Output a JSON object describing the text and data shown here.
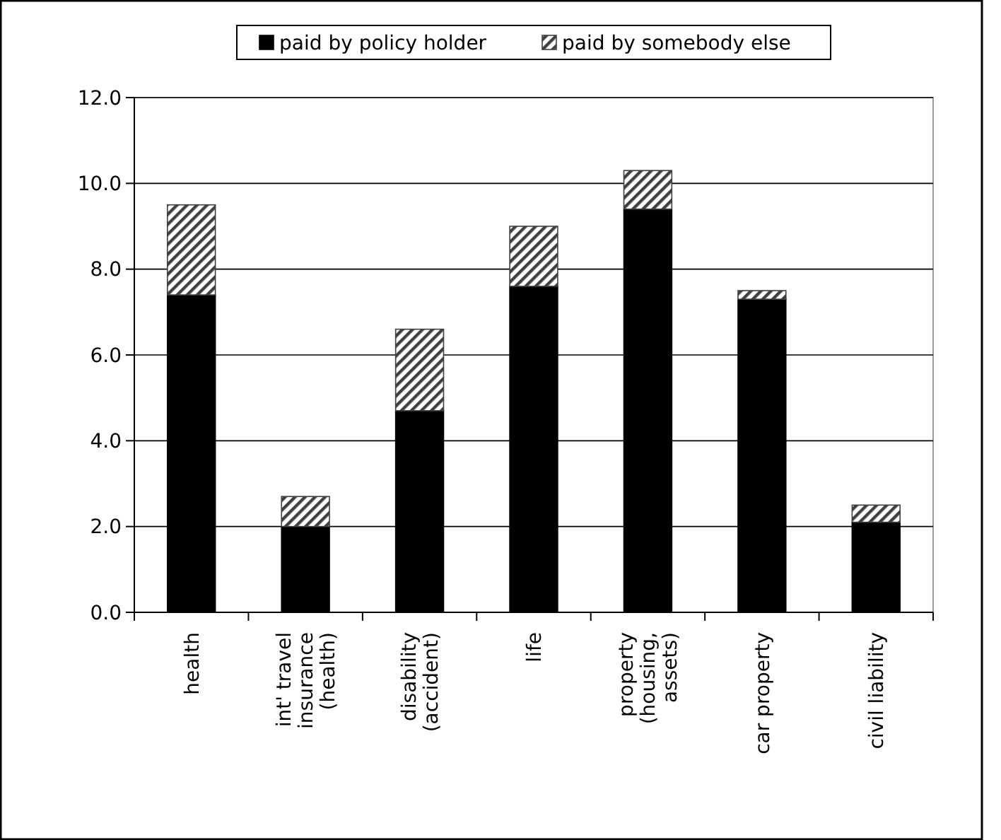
{
  "chart_data": {
    "type": "bar",
    "stacked": true,
    "categories": [
      "health",
      "int' travel insurance (health)",
      "disability (accident)",
      "life",
      "property (housing, assets)",
      "car property",
      "civil liability"
    ],
    "series": [
      {
        "name": "paid by policy holder",
        "color": "#000000",
        "values": [
          7.4,
          2.0,
          4.7,
          7.6,
          9.4,
          7.3,
          2.1
        ]
      },
      {
        "name": "paid by somebody else",
        "color": "#404040",
        "values": [
          2.1,
          0.7,
          1.9,
          1.4,
          0.9,
          0.2,
          0.4
        ]
      }
    ],
    "ylim": [
      0,
      12
    ],
    "yticks": [
      {
        "value": 0,
        "label": "0.0"
      },
      {
        "value": 2,
        "label": "2.0"
      },
      {
        "value": 4,
        "label": "4.0"
      },
      {
        "value": 6,
        "label": "6.0"
      },
      {
        "value": 8,
        "label": "8.0"
      },
      {
        "value": 10,
        "label": "10.0"
      },
      {
        "value": 12,
        "label": "12.0"
      }
    ],
    "grid": "y",
    "legend": "top"
  }
}
